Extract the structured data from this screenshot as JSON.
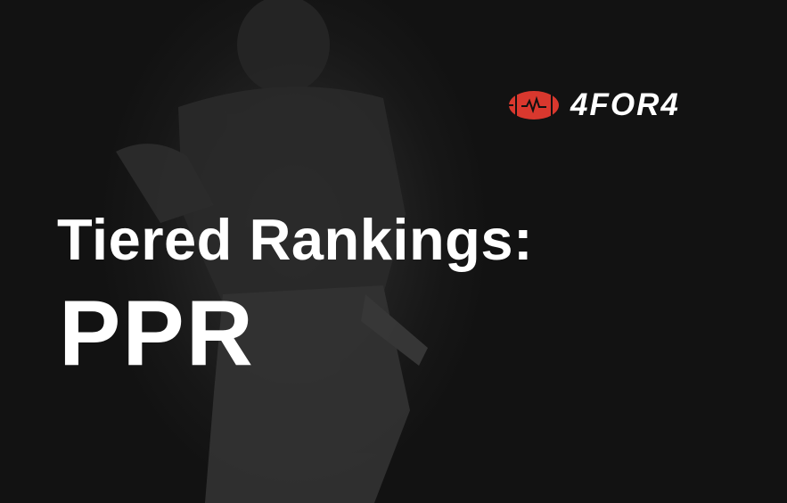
{
  "brand": {
    "name": "4FOR4",
    "logo_icon": "football-heartbeat-icon",
    "logo_color": "#d9382e"
  },
  "headline": {
    "title": "Tiered Rankings:",
    "subtitle": "PPR"
  },
  "colors": {
    "background": "#161616",
    "text": "#ffffff"
  }
}
